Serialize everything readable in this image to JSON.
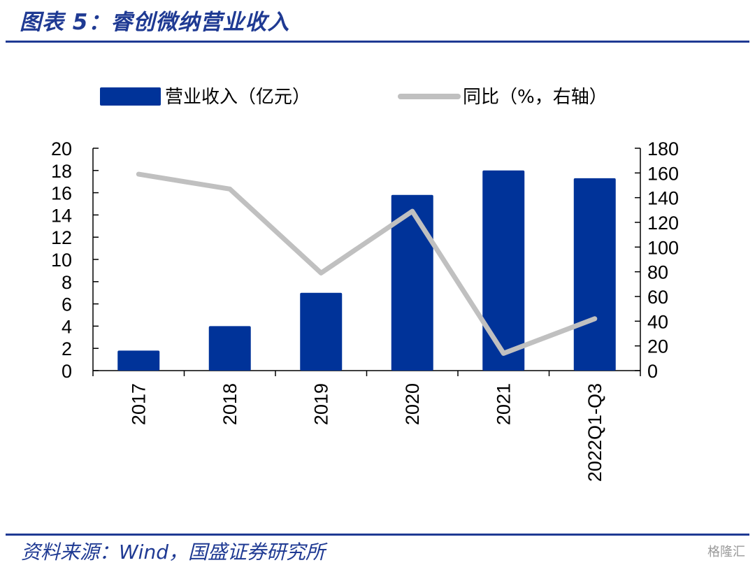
{
  "header": {
    "title": "图表 5：睿创微纳营业收入"
  },
  "footer": {
    "source": "资料来源：Wind，国盛证券研究所",
    "watermark": "格隆汇"
  },
  "chart_data": {
    "type": "bar+line",
    "categories": [
      "2017",
      "2018",
      "2019",
      "2020",
      "2021",
      "2022Q1-Q3"
    ],
    "series": [
      {
        "name": "营业收入（亿元）",
        "type": "bar",
        "axis": "left",
        "values": [
          1.8,
          4.0,
          7.0,
          15.8,
          18.0,
          17.3
        ],
        "color": "#003399"
      },
      {
        "name": "同比（%，右轴）",
        "type": "line",
        "axis": "right",
        "values": [
          159,
          147,
          79,
          129,
          14,
          42
        ],
        "color": "#c0c0c0"
      }
    ],
    "left_axis": {
      "min": 0,
      "max": 20,
      "step": 2
    },
    "right_axis": {
      "min": 0,
      "max": 180,
      "step": 20
    },
    "legend_position": "top",
    "grid": false
  }
}
